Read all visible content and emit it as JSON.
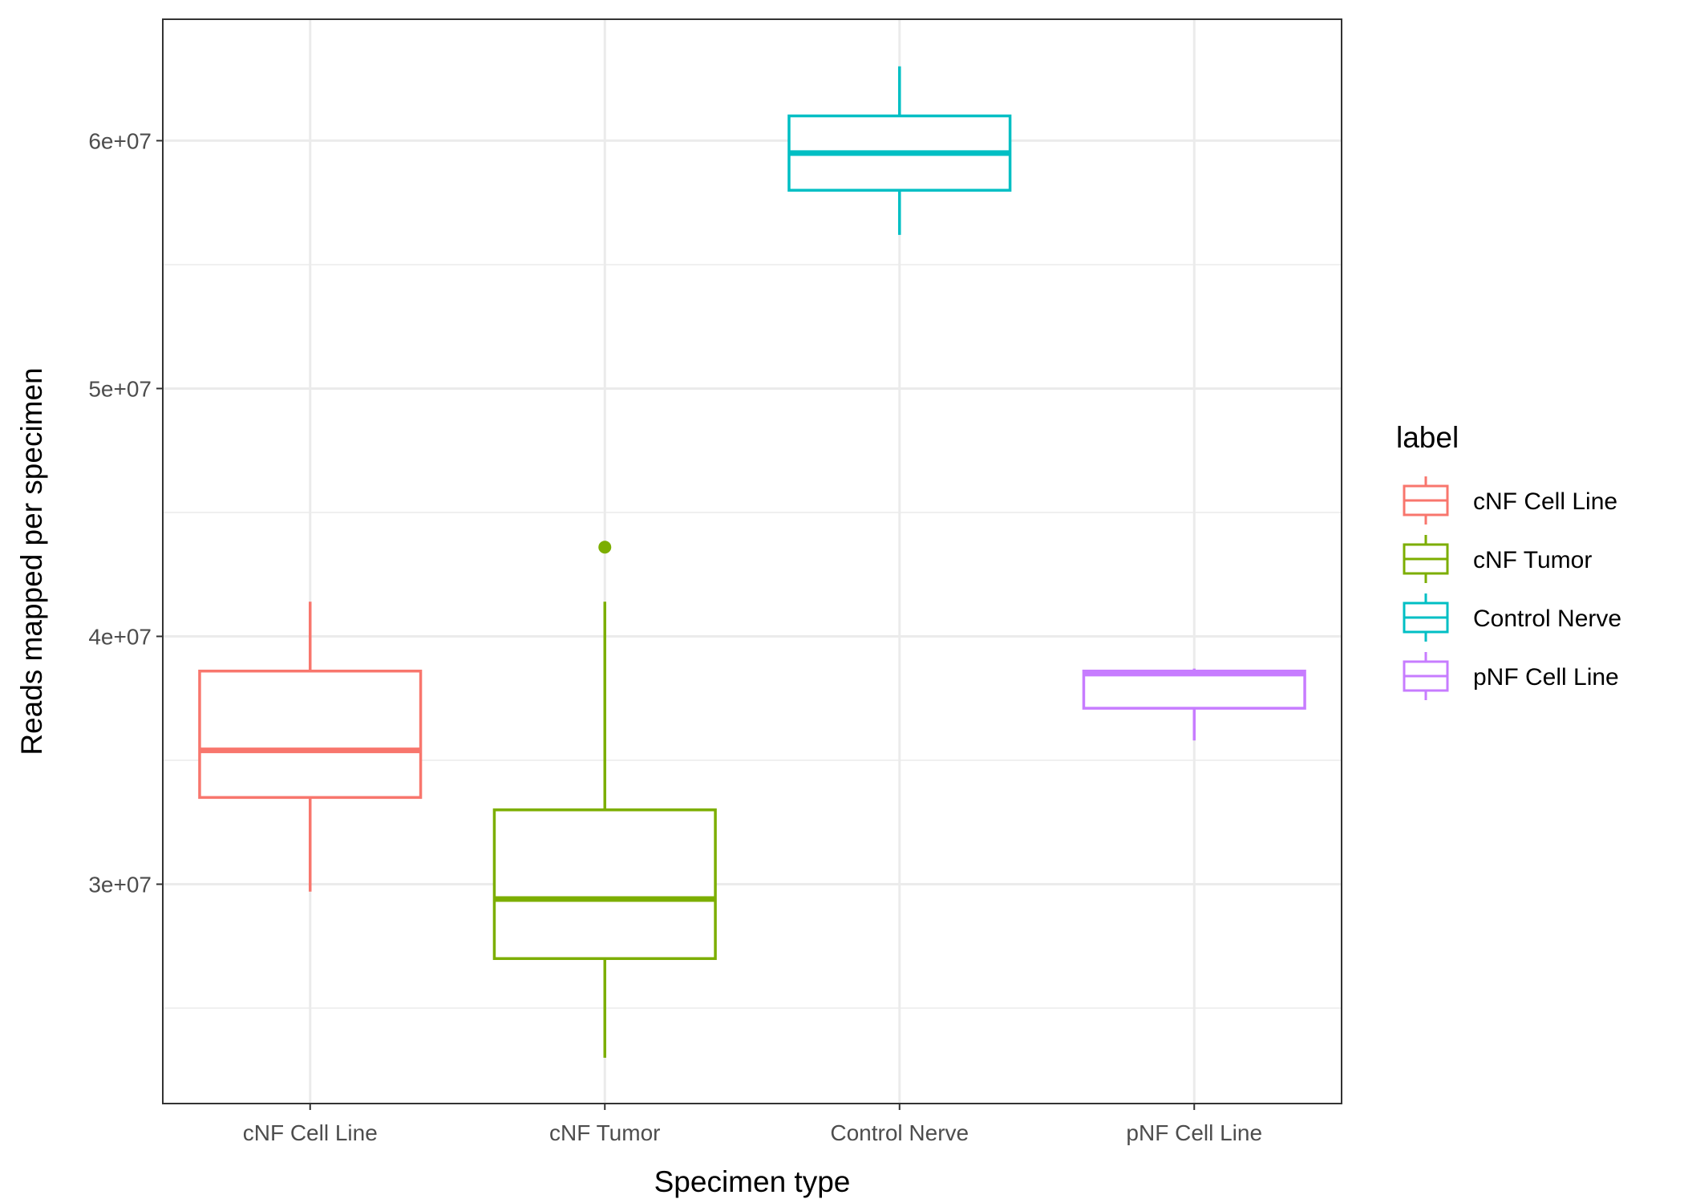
{
  "chart_data": {
    "type": "boxplot",
    "xlabel": "Specimen type",
    "ylabel": "Reads mapped per specimen",
    "categories": [
      "cNF Cell Line",
      "cNF Tumor",
      "Control Nerve",
      "pNF Cell Line"
    ],
    "ylim": [
      21150000,
      64900000
    ],
    "y_ticks": [
      {
        "value": 30000000,
        "label": "3e+07"
      },
      {
        "value": 40000000,
        "label": "4e+07"
      },
      {
        "value": 50000000,
        "label": "5e+07"
      },
      {
        "value": 60000000,
        "label": "6e+07"
      }
    ],
    "y_minor_ticks": [
      25000000,
      35000000,
      45000000,
      55000000
    ],
    "grid": true,
    "legend": {
      "title": "label",
      "position": "right",
      "entries": [
        "cNF Cell Line",
        "cNF Tumor",
        "Control Nerve",
        "pNF Cell Line"
      ]
    },
    "series": [
      {
        "name": "cNF Cell Line",
        "color": "#F8766D",
        "min": 29700000,
        "q1": 33500000,
        "median": 35400000,
        "q3": 38600000,
        "max": 41400000,
        "outliers": []
      },
      {
        "name": "cNF Tumor",
        "color": "#7CAE00",
        "min": 23000000,
        "q1": 27000000,
        "median": 29400000,
        "q3": 33000000,
        "max": 41400000,
        "outliers": [
          43600000
        ]
      },
      {
        "name": "Control Nerve",
        "color": "#00BFC4",
        "min": 56200000,
        "q1": 58000000,
        "median": 59500000,
        "q3": 61000000,
        "max": 63000000,
        "outliers": []
      },
      {
        "name": "pNF Cell Line",
        "color": "#C77CFF",
        "min": 35800000,
        "q1": 37100000,
        "median": 38500000,
        "q3": 38600000,
        "max": 38700000,
        "outliers": []
      }
    ]
  }
}
